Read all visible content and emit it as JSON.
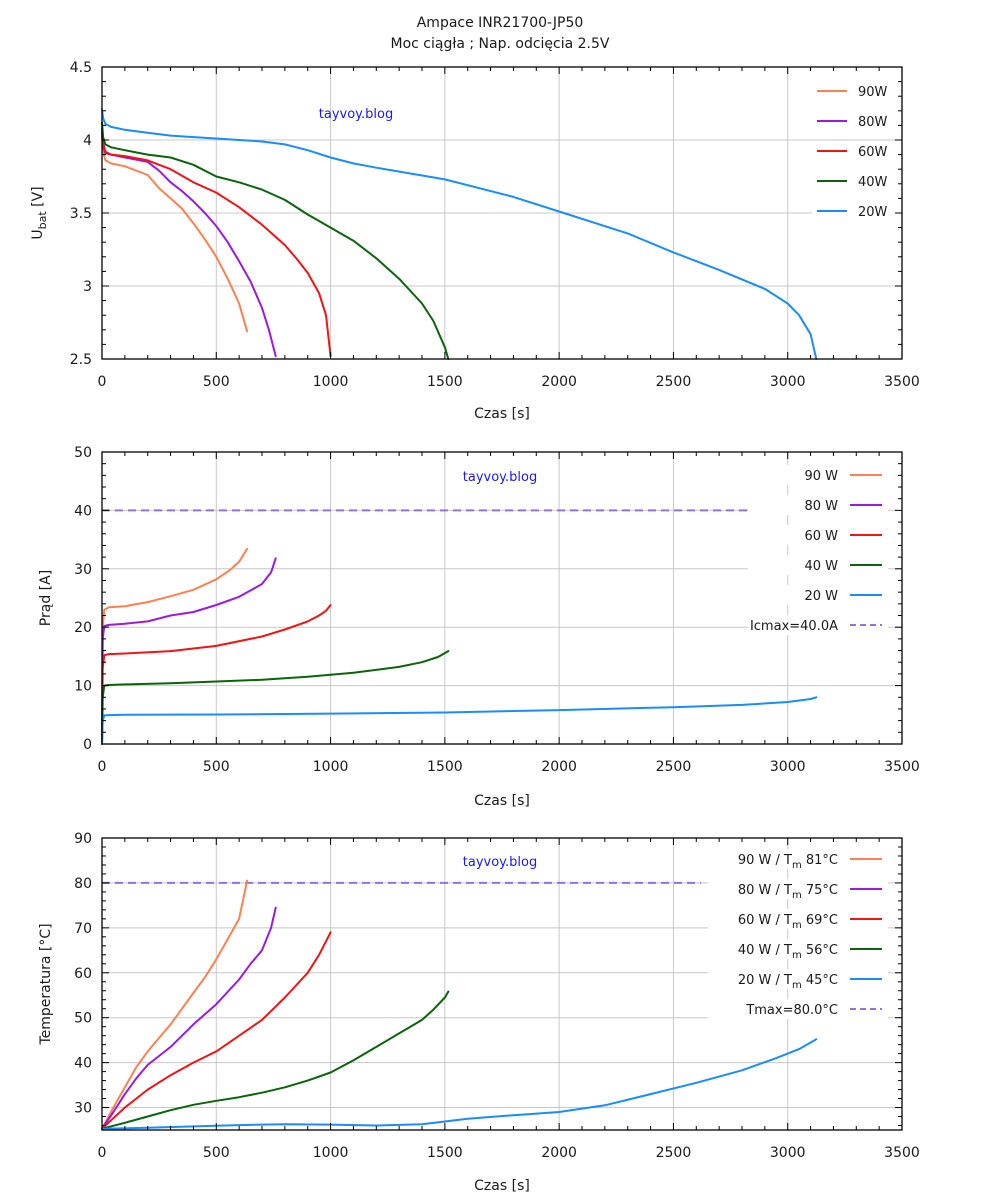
{
  "title": {
    "line1": "Ampace INR21700-JP50",
    "line2": "Moc ciągła ; Nap. odcięcia 2.5V"
  },
  "watermark": "tayvoy.blog",
  "colors": {
    "90W": "#ff8050",
    "80W": "#9a1adf",
    "60W": "#f01414",
    "40W": "#0a640a",
    "20W": "#1a8cff",
    "limit": "#9370db"
  },
  "chart_data": [
    {
      "id": "voltage",
      "type": "line",
      "title": "Ampace INR21700-JP50 / Moc ciągła ; Nap. odcięcia 2.5V",
      "xlabel": "Czas [s]",
      "ylabel_main": "U",
      "ylabel_sub": "bat",
      "ylabel_unit": " [V]",
      "xlim": [
        0,
        3500
      ],
      "ylim": [
        2.5,
        4.5
      ],
      "xticks": [
        0,
        500,
        1000,
        1500,
        2000,
        2500,
        3000,
        3500
      ],
      "yticks": [
        2.5,
        3,
        3.5,
        4,
        4.5
      ],
      "ytick_labels": [
        "2.5",
        "3",
        "3.5",
        "4",
        "4.5"
      ],
      "grid": true,
      "legend": "top-right",
      "series": [
        {
          "name": "90W",
          "legend": "90W",
          "color_key": "90W",
          "x": [
            0,
            5,
            15,
            40,
            100,
            200,
            250,
            300,
            350,
            400,
            450,
            500,
            550,
            600,
            635
          ],
          "y": [
            4.02,
            3.92,
            3.86,
            3.84,
            3.82,
            3.76,
            3.67,
            3.6,
            3.53,
            3.43,
            3.32,
            3.2,
            3.05,
            2.88,
            2.69
          ]
        },
        {
          "name": "80W",
          "legend": "80W",
          "color_key": "80W",
          "x": [
            0,
            5,
            15,
            40,
            100,
            200,
            250,
            300,
            350,
            400,
            450,
            500,
            550,
            600,
            650,
            700,
            730,
            760
          ],
          "y": [
            4.05,
            3.95,
            3.91,
            3.9,
            3.88,
            3.85,
            3.79,
            3.71,
            3.65,
            3.58,
            3.5,
            3.41,
            3.3,
            3.17,
            3.03,
            2.85,
            2.7,
            2.52
          ]
        },
        {
          "name": "60W",
          "legend": "60W",
          "color_key": "60W",
          "x": [
            0,
            5,
            15,
            40,
            100,
            200,
            300,
            400,
            500,
            600,
            700,
            750,
            800,
            850,
            900,
            950,
            980,
            1000
          ],
          "y": [
            4.08,
            3.98,
            3.92,
            3.9,
            3.89,
            3.86,
            3.8,
            3.71,
            3.64,
            3.54,
            3.42,
            3.35,
            3.28,
            3.19,
            3.09,
            2.95,
            2.8,
            2.52
          ]
        },
        {
          "name": "40W",
          "legend": "40W",
          "color_key": "40W",
          "x": [
            0,
            5,
            15,
            40,
            100,
            200,
            300,
            400,
            500,
            600,
            700,
            800,
            900,
            1000,
            1100,
            1200,
            1300,
            1400,
            1450,
            1500,
            1515
          ],
          "y": [
            4.12,
            4.02,
            3.97,
            3.95,
            3.93,
            3.9,
            3.88,
            3.83,
            3.75,
            3.71,
            3.66,
            3.59,
            3.49,
            3.4,
            3.31,
            3.19,
            3.05,
            2.88,
            2.76,
            2.58,
            2.5
          ]
        },
        {
          "name": "20W",
          "legend": "20W",
          "color_key": "20W",
          "x": [
            0,
            5,
            15,
            40,
            100,
            200,
            300,
            400,
            500,
            600,
            700,
            800,
            900,
            1000,
            1100,
            1200,
            1500,
            1800,
            2000,
            2300,
            2500,
            2700,
            2900,
            3000,
            3050,
            3100,
            3125
          ],
          "y": [
            4.21,
            4.15,
            4.11,
            4.09,
            4.07,
            4.05,
            4.03,
            4.02,
            4.01,
            4.0,
            3.99,
            3.97,
            3.93,
            3.88,
            3.84,
            3.81,
            3.73,
            3.61,
            3.51,
            3.36,
            3.23,
            3.11,
            2.98,
            2.88,
            2.8,
            2.67,
            2.5
          ]
        }
      ]
    },
    {
      "id": "current",
      "type": "line",
      "xlabel": "Czas [s]",
      "ylabel": "Prąd [A]",
      "xlim": [
        0,
        3500
      ],
      "ylim": [
        0,
        50
      ],
      "xticks": [
        0,
        500,
        1000,
        1500,
        2000,
        2500,
        3000,
        3500
      ],
      "yticks": [
        0,
        10,
        20,
        30,
        40,
        50
      ],
      "ytick_labels": [
        "0",
        "10",
        "20",
        "30",
        "40",
        "50"
      ],
      "grid": true,
      "legend": "top-right",
      "series": [
        {
          "name": "90 W",
          "legend": "90 W",
          "color_key": "90W",
          "x": [
            0,
            3,
            10,
            30,
            100,
            200,
            300,
            400,
            500,
            560,
            600,
            635
          ],
          "y": [
            0,
            20,
            23,
            23.4,
            23.6,
            24.3,
            25.3,
            26.4,
            28.2,
            29.8,
            31.2,
            33.4
          ]
        },
        {
          "name": "80 W",
          "legend": "80 W",
          "color_key": "80W",
          "x": [
            0,
            3,
            10,
            30,
            100,
            200,
            300,
            400,
            500,
            600,
            650,
            700,
            740,
            760
          ],
          "y": [
            0,
            18,
            20.2,
            20.4,
            20.6,
            21.0,
            22.0,
            22.6,
            23.8,
            25.2,
            26.3,
            27.4,
            29.4,
            31.8
          ]
        },
        {
          "name": "60 W",
          "legend": "60 W",
          "color_key": "60W",
          "x": [
            0,
            3,
            10,
            30,
            100,
            300,
            500,
            700,
            800,
            900,
            950,
            980,
            1000
          ],
          "y": [
            0,
            13,
            15.2,
            15.4,
            15.5,
            15.9,
            16.8,
            18.4,
            19.6,
            21.0,
            22.0,
            22.8,
            23.8
          ]
        },
        {
          "name": "40 W",
          "legend": "40 W",
          "color_key": "40W",
          "x": [
            0,
            3,
            10,
            30,
            100,
            300,
            500,
            700,
            900,
            1100,
            1300,
            1400,
            1470,
            1515
          ],
          "y": [
            0,
            8,
            10.0,
            10.1,
            10.2,
            10.4,
            10.7,
            11.0,
            11.5,
            12.2,
            13.2,
            14.0,
            14.9,
            15.9
          ]
        },
        {
          "name": "20 W",
          "legend": "20 W",
          "color_key": "20W",
          "x": [
            0,
            3,
            10,
            30,
            100,
            500,
            1000,
            1500,
            2000,
            2500,
            2800,
            3000,
            3100,
            3125
          ],
          "y": [
            0,
            4,
            4.9,
            4.95,
            5.0,
            5.05,
            5.2,
            5.4,
            5.8,
            6.3,
            6.7,
            7.2,
            7.7,
            8.0
          ]
        }
      ],
      "limit_line": {
        "name": "Icmax=40.0A",
        "legend": "Icmax=40.0A",
        "y": 40,
        "x_range": [
          0,
          2870
        ],
        "style": "dashed",
        "color_key": "limit"
      }
    },
    {
      "id": "temperature",
      "type": "line",
      "xlabel": "Czas [s]",
      "ylabel": "Temperatura [°C]",
      "xlim": [
        0,
        3500
      ],
      "ylim": [
        25,
        90
      ],
      "xticks": [
        0,
        500,
        1000,
        1500,
        2000,
        2500,
        3000,
        3500
      ],
      "yticks": [
        30,
        40,
        50,
        60,
        70,
        80,
        90
      ],
      "ytick_labels": [
        "30",
        "40",
        "50",
        "60",
        "70",
        "80",
        "90"
      ],
      "grid": true,
      "legend": "top-right",
      "series": [
        {
          "name": "90 W",
          "legend_power": "90 W",
          "legend_tm": "81°C",
          "color_key": "90W",
          "x": [
            0,
            50,
            100,
            150,
            200,
            250,
            300,
            350,
            400,
            450,
            500,
            550,
            600,
            635
          ],
          "y": [
            25.3,
            30,
            34.5,
            39,
            42.5,
            45.5,
            48.5,
            52,
            55.5,
            59,
            63,
            67.5,
            72,
            80.5
          ]
        },
        {
          "name": "80 W",
          "legend_power": "80 W",
          "legend_tm": "75°C",
          "color_key": "80W",
          "x": [
            0,
            50,
            100,
            150,
            200,
            300,
            400,
            500,
            600,
            650,
            700,
            740,
            760
          ],
          "y": [
            25.3,
            29,
            33,
            36.5,
            39.5,
            43.5,
            48.5,
            53,
            58.5,
            62,
            65,
            70,
            74.5
          ]
        },
        {
          "name": "60 W",
          "legend_power": "60 W",
          "legend_tm": "69°C",
          "color_key": "60W",
          "x": [
            0,
            100,
            200,
            300,
            400,
            500,
            600,
            700,
            800,
            900,
            950,
            1000
          ],
          "y": [
            25.3,
            30,
            34,
            37.2,
            40,
            42.5,
            46,
            49.5,
            54.5,
            60,
            64,
            69
          ]
        },
        {
          "name": "40 W",
          "legend_power": "40 W",
          "legend_tm": "56°C",
          "color_key": "40W",
          "x": [
            0,
            100,
            200,
            300,
            400,
            500,
            600,
            700,
            800,
            900,
            1000,
            1100,
            1200,
            1300,
            1400,
            1450,
            1500,
            1515
          ],
          "y": [
            25.3,
            26.6,
            28,
            29.4,
            30.6,
            31.5,
            32.3,
            33.3,
            34.5,
            36,
            37.8,
            40.5,
            43.5,
            46.5,
            49.5,
            51.8,
            54.5,
            55.8
          ]
        },
        {
          "name": "20 W",
          "legend_power": "20 W",
          "legend_tm": "45°C",
          "color_key": "20W",
          "x": [
            0,
            200,
            400,
            600,
            800,
            1000,
            1200,
            1400,
            1600,
            1800,
            2000,
            2200,
            2400,
            2600,
            2800,
            2950,
            3050,
            3125
          ],
          "y": [
            25.3,
            25.5,
            25.8,
            26.1,
            26.3,
            26.2,
            26.0,
            26.3,
            27.5,
            28.3,
            29,
            30.5,
            33,
            35.5,
            38.3,
            41,
            43,
            45.2
          ]
        }
      ],
      "legend_sub": "m",
      "legend_prefix": "/ T",
      "limit_line": {
        "name": "Tmax=80.0°C",
        "legend": "Tmax=80.0°C",
        "y": 80,
        "x_range": [
          0,
          2620
        ],
        "style": "dashed",
        "color_key": "limit"
      }
    }
  ]
}
